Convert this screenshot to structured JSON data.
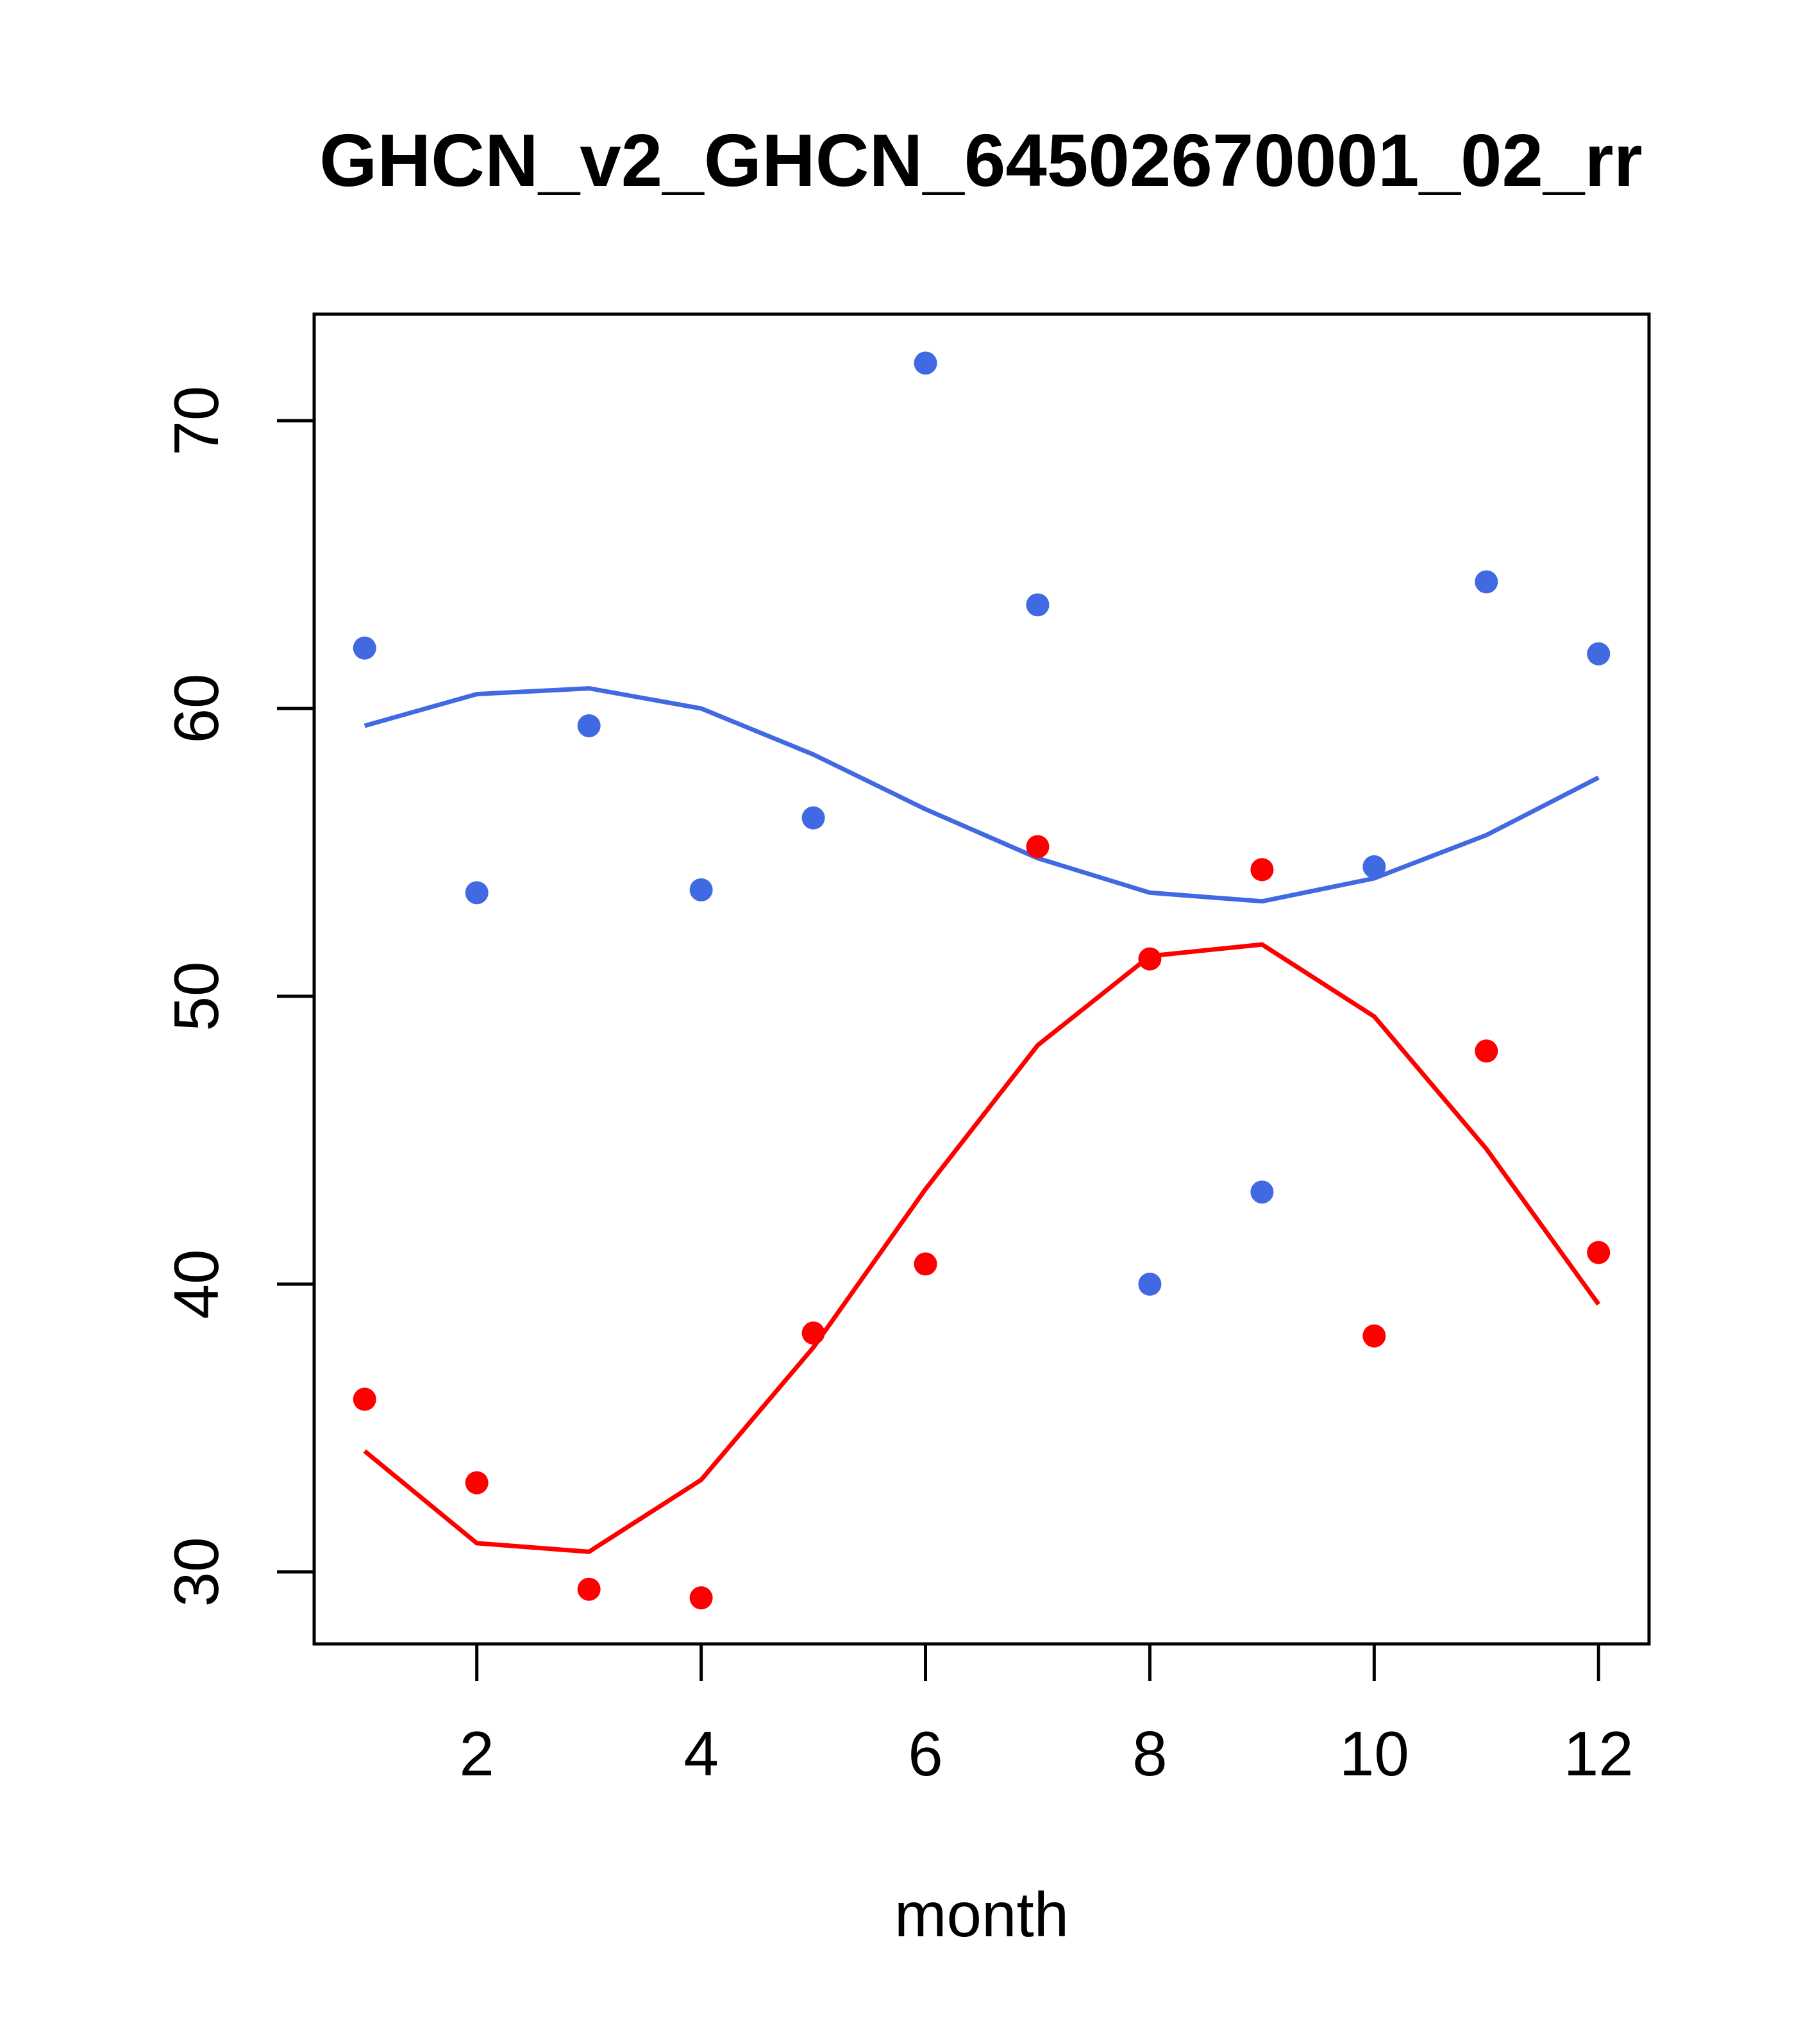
{
  "chart_data": {
    "type": "scatter",
    "title": "GHCN_v2_GHCN_64502670001_02_rr",
    "xlabel": "month",
    "ylabel": "",
    "xlim": [
      0.55,
      12.45
    ],
    "ylim": [
      27.5,
      73.7
    ],
    "x_ticks": [
      2,
      4,
      6,
      8,
      10,
      12
    ],
    "y_ticks": [
      30,
      40,
      50,
      60,
      70
    ],
    "grid": false,
    "legend": "none",
    "series": [
      {
        "color": "#4169E1",
        "x": [
          1,
          2,
          3,
          4,
          5,
          6,
          7,
          8,
          9,
          10,
          11,
          12
        ],
        "points": [
          62.1,
          53.6,
          59.4,
          53.7,
          56.2,
          72.0,
          63.6,
          40.0,
          43.2,
          54.5,
          64.4,
          61.9
        ],
        "curve": [
          59.4,
          60.5,
          60.7,
          60.0,
          58.4,
          56.5,
          54.8,
          53.6,
          53.3,
          54.1,
          55.6,
          57.6
        ]
      },
      {
        "color": "#FF0000",
        "x": [
          1,
          2,
          3,
          4,
          5,
          6,
          7,
          8,
          9,
          10,
          11,
          12
        ],
        "points": [
          36.0,
          33.1,
          29.4,
          29.1,
          38.3,
          40.7,
          55.2,
          51.3,
          54.4,
          38.2,
          48.1,
          41.1
        ],
        "curve": [
          34.2,
          31.0,
          30.7,
          33.2,
          37.8,
          43.3,
          48.3,
          51.4,
          51.8,
          49.3,
          44.7,
          39.3
        ]
      }
    ]
  }
}
